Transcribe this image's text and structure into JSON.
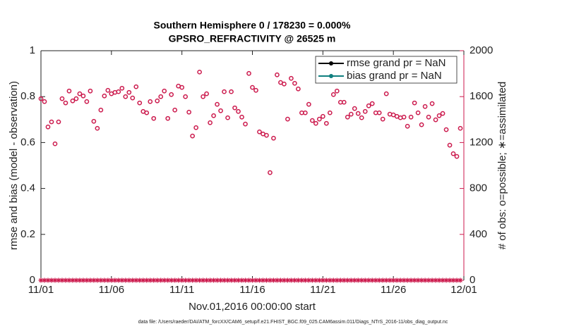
{
  "chart_data": {
    "type": "scatter",
    "title": "Southern Hemisphere 0 / 178230 = 0.000%",
    "subtitle": "GPSRO_REFRACTIVITY @ 26525 m",
    "xlabel": "Nov.01,2016 00:00:00 start",
    "ylabel": "rmse and bias (model - observation)",
    "y2label": "# of obs: o=possible; ∗=assimilated",
    "footnote": "data file: /Users/raeder/DAI/ATM_forcXX/CAM6_setup/f.e21.FHIST_BGC.f09_025.CAM6assim.011/Diags_NTrS_2016-11/obs_diag_output.nc",
    "xlim": [
      0,
      30
    ],
    "xticks": [
      {
        "value": 0,
        "label": "11/01"
      },
      {
        "value": 5,
        "label": "11/06"
      },
      {
        "value": 10,
        "label": "11/11"
      },
      {
        "value": 15,
        "label": "11/16"
      },
      {
        "value": 20,
        "label": "11/21"
      },
      {
        "value": 25,
        "label": "11/26"
      },
      {
        "value": 30,
        "label": "12/01"
      }
    ],
    "ylim": [
      0,
      1
    ],
    "yticks": [
      0,
      0.2,
      0.4,
      0.6,
      0.8,
      1
    ],
    "y2lim": [
      0,
      2000
    ],
    "y2ticks": [
      0,
      400,
      800,
      1200,
      1600,
      2000
    ],
    "y2color": "#cc1a4d",
    "legend_position": "upper right",
    "legend_text_color": "#1a5fe0",
    "legend": [
      {
        "label": "rmse grand pr = NaN",
        "color": "#000000"
      },
      {
        "label": "bias grand pr = NaN",
        "color": "#0f7f7f"
      }
    ],
    "x": [
      0,
      0.25,
      0.5,
      0.75,
      1,
      1.25,
      1.5,
      1.75,
      2,
      2.25,
      2.5,
      2.75,
      3,
      3.25,
      3.5,
      3.75,
      4,
      4.25,
      4.5,
      4.75,
      5,
      5.25,
      5.5,
      5.75,
      6,
      6.25,
      6.5,
      6.75,
      7,
      7.25,
      7.5,
      7.75,
      8,
      8.25,
      8.5,
      8.75,
      9,
      9.25,
      9.5,
      9.75,
      10,
      10.25,
      10.5,
      10.75,
      11,
      11.25,
      11.5,
      11.75,
      12,
      12.25,
      12.5,
      12.75,
      13,
      13.25,
      13.5,
      13.75,
      14,
      14.25,
      14.5,
      14.75,
      15,
      15.25,
      15.5,
      15.75,
      16,
      16.25,
      16.5,
      16.75,
      17,
      17.25,
      17.5,
      17.75,
      18,
      18.25,
      18.5,
      18.75,
      19,
      19.25,
      19.5,
      19.75,
      20,
      20.25,
      20.5,
      20.75,
      21,
      21.25,
      21.5,
      21.75,
      22,
      22.25,
      22.5,
      22.75,
      23,
      23.25,
      23.5,
      23.75,
      24,
      24.25,
      24.5,
      24.75,
      25,
      25.25,
      25.5,
      25.75,
      26,
      26.25,
      26.5,
      26.75,
      27,
      27.25,
      27.5,
      27.75,
      28,
      28.25,
      28.5,
      28.75,
      29,
      29.25,
      29.5,
      29.75
    ],
    "series": [
      {
        "marker": "o",
        "axis": "y2",
        "color": "#cc1a4d",
        "values": [
          1582,
          1557,
          1336,
          1380,
          1189,
          1380,
          1582,
          1545,
          1649,
          1563,
          1582,
          1625,
          1606,
          1557,
          1649,
          1385,
          1324,
          1483,
          1606,
          1655,
          1625,
          1637,
          1643,
          1673,
          1600,
          1637,
          1588,
          1686,
          1545,
          1471,
          1459,
          1557,
          1410,
          1563,
          1600,
          1649,
          1410,
          1618,
          1483,
          1692,
          1680,
          1600,
          1465,
          1257,
          1330,
          1814,
          1600,
          1625,
          1373,
          1434,
          1533,
          1477,
          1643,
          1416,
          1643,
          1502,
          1471,
          1422,
          1361,
          1802,
          1680,
          1655,
          1293,
          1275,
          1263,
          938,
          1238,
          1790,
          1723,
          1710,
          1404,
          1759,
          1716,
          1667,
          1459,
          1459,
          1533,
          1392,
          1367,
          1404,
          1428,
          1367,
          1459,
          1618,
          1649,
          1551,
          1551,
          1422,
          1447,
          1496,
          1453,
          1416,
          1471,
          1520,
          1539,
          1459,
          1459,
          1404,
          1625,
          1447,
          1441,
          1428,
          1416,
          1422,
          1342,
          1422,
          1545,
          1459,
          1355,
          1514,
          1422,
          1539,
          1398,
          1434,
          1453,
          1312,
          1177,
          1103,
          1079,
          1324
        ]
      },
      {
        "marker": "*",
        "axis": "y2",
        "color": "#cc1a4d",
        "values": [
          0,
          0,
          0,
          0,
          0,
          0,
          0,
          0,
          0,
          0,
          0,
          0,
          0,
          0,
          0,
          0,
          0,
          0,
          0,
          0,
          0,
          0,
          0,
          0,
          0,
          0,
          0,
          0,
          0,
          0,
          0,
          0,
          0,
          0,
          0,
          0,
          0,
          0,
          0,
          0,
          0,
          0,
          0,
          0,
          0,
          0,
          0,
          0,
          0,
          0,
          0,
          0,
          0,
          0,
          0,
          0,
          0,
          0,
          0,
          0,
          0,
          0,
          0,
          0,
          0,
          0,
          0,
          0,
          0,
          0,
          0,
          0,
          0,
          0,
          0,
          0,
          0,
          0,
          0,
          0,
          0,
          0,
          0,
          0,
          0,
          0,
          0,
          0,
          0,
          0,
          0,
          0,
          0,
          0,
          0,
          0,
          0,
          0,
          0,
          0,
          0,
          0,
          0,
          0,
          0,
          0,
          0,
          0,
          0,
          0,
          0,
          0,
          0,
          0,
          0,
          0,
          0,
          0,
          0,
          0
        ]
      }
    ]
  }
}
